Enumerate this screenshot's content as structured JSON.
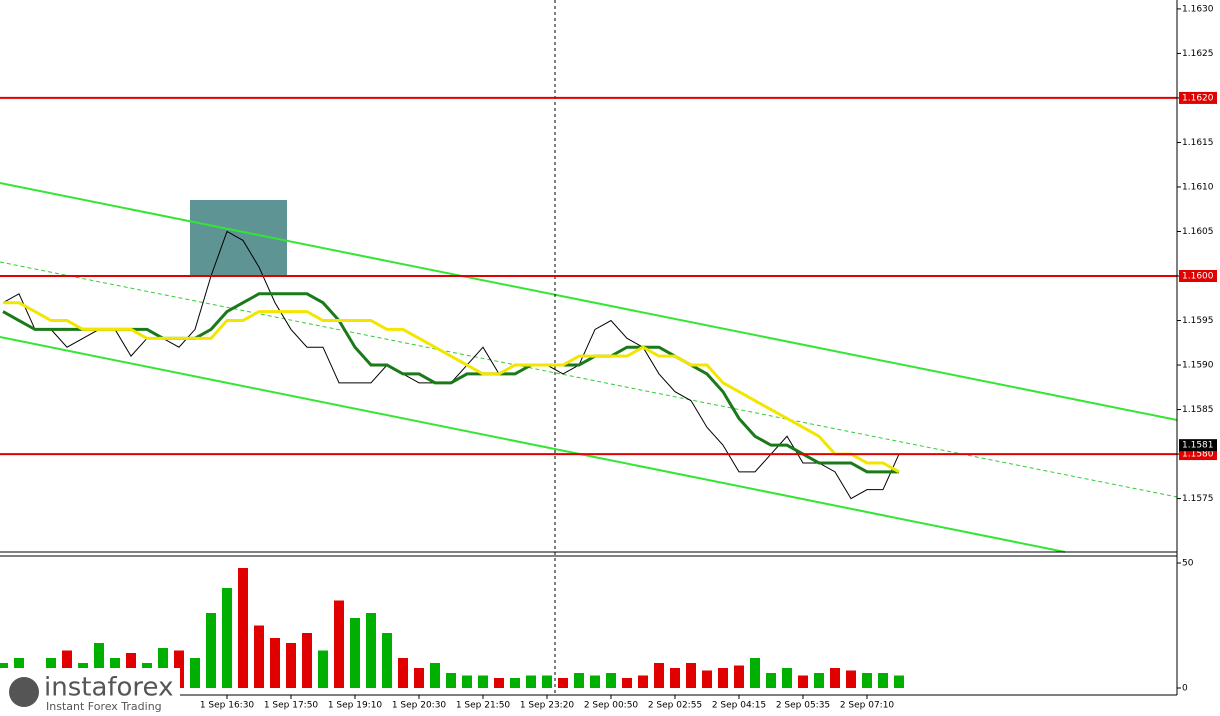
{
  "chart_data": [
    {
      "type": "line",
      "categories": [
        null,
        null,
        null,
        null,
        null,
        null,
        null,
        null,
        null,
        null,
        null,
        null,
        null,
        null,
        "1 Sep 16:30",
        null,
        null,
        null,
        "1 Sep 17:50",
        null,
        null,
        null,
        "1 Sep 19:10",
        null,
        null,
        null,
        "1 Sep 20:30",
        null,
        null,
        null,
        "1 Sep 21:50",
        null,
        null,
        null,
        "1 Sep 23:20",
        null,
        null,
        null,
        "2 Sep 00:50",
        null,
        null,
        null,
        "2 Sep 02:55",
        null,
        null,
        null,
        "2 Sep 04:15",
        null,
        null,
        null,
        "2 Sep 05:35",
        null,
        null,
        null,
        "2 Sep 07:10",
        null,
        null
      ],
      "series": [
        {
          "color": "#000000",
          "values": [
            1.1597,
            1.1598,
            1.1594,
            1.1594,
            1.1592,
            1.1593,
            1.1594,
            1.1594,
            1.1591,
            1.1593,
            1.1593,
            1.1592,
            1.1594,
            1.16,
            1.1605,
            1.1604,
            1.1601,
            1.1597,
            1.1594,
            1.1592,
            1.1592,
            1.1588,
            1.1588,
            1.1588,
            1.159,
            1.1589,
            1.1588,
            1.1588,
            1.1588,
            1.159,
            1.1592,
            1.1589,
            1.1589,
            1.159,
            1.159,
            1.1589,
            1.159,
            1.1594,
            1.1595,
            1.1593,
            1.1592,
            1.1589,
            1.1587,
            1.1586,
            1.1583,
            1.1581,
            1.1578,
            1.1578,
            1.158,
            1.1582,
            1.1579,
            1.1579,
            1.1578,
            1.1575,
            1.1576,
            1.1576,
            1.158
          ]
        },
        {
          "color": "#1a7a1a",
          "values": [
            1.1596,
            1.1595,
            1.1594,
            1.1594,
            1.1594,
            1.1594,
            1.1594,
            1.1594,
            1.1594,
            1.1594,
            1.1593,
            1.1593,
            1.1593,
            1.1594,
            1.1596,
            1.1597,
            1.1598,
            1.1598,
            1.1598,
            1.1598,
            1.1597,
            1.1595,
            1.1592,
            1.159,
            1.159,
            1.1589,
            1.1589,
            1.1588,
            1.1588,
            1.1589,
            1.1589,
            1.1589,
            1.1589,
            1.159,
            1.159,
            1.159,
            1.159,
            1.1591,
            1.1591,
            1.1592,
            1.1592,
            1.1592,
            1.1591,
            1.159,
            1.1589,
            1.1587,
            1.1584,
            1.1582,
            1.1581,
            1.1581,
            1.158,
            1.1579,
            1.1579,
            1.1579,
            1.1578,
            1.1578,
            1.1578
          ]
        },
        {
          "color": "#f2e600",
          "values": [
            1.1597,
            1.1597,
            1.1596,
            1.1595,
            1.1595,
            1.1594,
            1.1594,
            1.1594,
            1.1594,
            1.1593,
            1.1593,
            1.1593,
            1.1593,
            1.1593,
            1.1595,
            1.1595,
            1.1596,
            1.1596,
            1.1596,
            1.1596,
            1.1595,
            1.1595,
            1.1595,
            1.1595,
            1.1594,
            1.1594,
            1.1593,
            1.1592,
            1.1591,
            1.159,
            1.1589,
            1.1589,
            1.159,
            1.159,
            1.159,
            1.159,
            1.1591,
            1.1591,
            1.1591,
            1.1591,
            1.1592,
            1.1591,
            1.1591,
            1.159,
            1.159,
            1.1588,
            1.1587,
            1.1586,
            1.1585,
            1.1584,
            1.1583,
            1.1582,
            1.158,
            1.158,
            1.1579,
            1.1579,
            1.1578
          ]
        }
      ],
      "ylim": [
        1.1569,
        1.1631
      ],
      "yticks": [
        {
          "value": 1.163,
          "label": "1.1630"
        },
        {
          "value": 1.1625,
          "label": "1.1625"
        },
        {
          "value": 1.162,
          "label": "1.1620"
        },
        {
          "value": 1.1615,
          "label": "1.1615"
        },
        {
          "value": 1.161,
          "label": "1.1610"
        },
        {
          "value": 1.1605,
          "label": "1.1605"
        },
        {
          "value": 1.16,
          "label": "1.1600"
        },
        {
          "value": 1.1595,
          "label": "1.1595"
        },
        {
          "value": 1.159,
          "label": "1.1590"
        },
        {
          "value": 1.1585,
          "label": "1.1585"
        },
        {
          "value": 1.158,
          "label": "1.1580"
        },
        {
          "value": 1.1575,
          "label": "1.1575"
        }
      ],
      "levels": [
        {
          "value": 1.162,
          "label": "1.1620"
        },
        {
          "value": 1.16,
          "label": "1.1600"
        },
        {
          "value": 1.158,
          "label": "1.1580"
        }
      ],
      "level_color": "#e00000",
      "current_price": {
        "value": 1.1581,
        "label": "1.1581"
      }
    },
    {
      "type": "bar",
      "values": [
        10,
        12,
        8,
        12,
        15,
        10,
        18,
        12,
        14,
        10,
        16,
        15,
        12,
        30,
        40,
        48,
        25,
        20,
        18,
        22,
        15,
        35,
        28,
        30,
        22,
        12,
        8,
        10,
        6,
        5,
        5,
        4,
        4,
        5,
        5,
        4,
        6,
        5,
        6,
        4,
        5,
        10,
        8,
        10,
        7,
        8,
        9,
        12,
        6,
        8,
        5,
        6,
        8,
        7,
        6,
        6,
        5
      ],
      "up_color": "#00b000",
      "down_color": "#e00000",
      "ylim": [
        0,
        50
      ],
      "yticks": [
        50,
        0
      ]
    }
  ],
  "logo": {
    "name": "instaforex",
    "tagline": "Instant Forex Trading"
  }
}
